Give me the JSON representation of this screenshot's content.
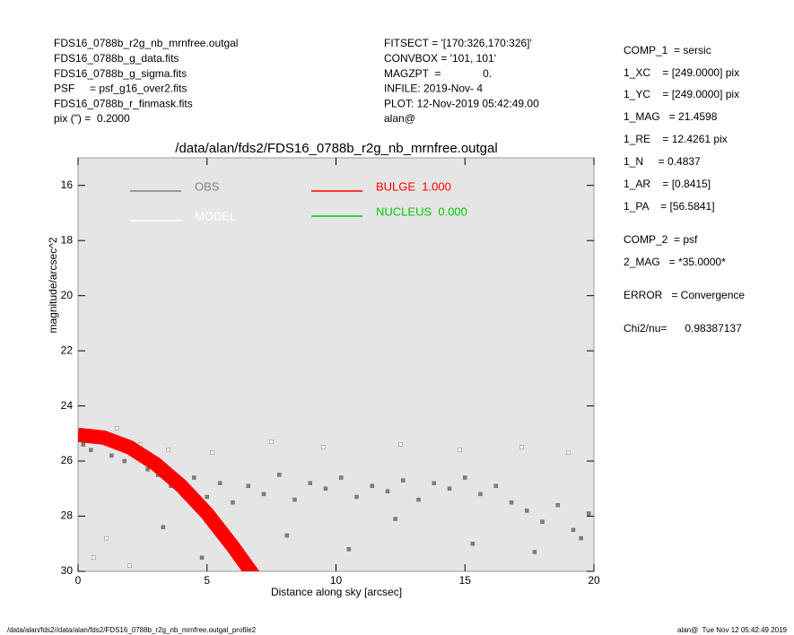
{
  "header": {
    "left": [
      "FDS16_0788b_r2g_nb_mrnfree.outgal",
      "FDS16_0788b_g_data.fits",
      "FDS16_0788b_g_sigma.fits",
      "PSF     = psf_g16_over2.fits",
      "FDS16_0788b_r_finmask.fits",
      "pix (\") =  0.2000"
    ],
    "middle": [
      "FITSECT = '[170:326,170:326]'",
      "CONVBOX = '101, 101'",
      "MAGZPT  =              0.",
      "INFILE: 2019-Nov- 4",
      "PLOT: 12-Nov-2019 05:42:49.00",
      "alan@"
    ]
  },
  "right_panel": [
    "COMP_1  = sersic",
    "1_XC    = [249.0000] pix",
    "1_YC    = [249.0000] pix",
    "1_MAG   = 21.4598",
    "1_RE    = 12.4261 pix",
    "1_N     = 0.4837",
    "1_AR    = [0.8415]",
    "1_PA    = [56.5841]",
    "COMP_2  = psf",
    "2_MAG   = *35.0000*",
    "ERROR   = Convergence",
    "Chi2/nu=      0.98387137"
  ],
  "footer": {
    "left": "/data/alan/fds2//data/alan/fds2/FDS16_0788b_r2g_nb_mrnfree.outgal_profile2",
    "right": "alan@  Tue Nov 12 05:42:49 2019"
  },
  "chart_data": {
    "type": "scatter",
    "title": "/data/alan/fds2/FDS16_0788b_r2g_nb_mrnfree.outgal",
    "x_label": "Distance along sky [arcsec]",
    "y_label": "magnitude/arcsec^2",
    "xlim": [
      0,
      20
    ],
    "xticks": [
      0,
      5,
      10,
      15,
      20
    ],
    "ylim": [
      15,
      30
    ],
    "yticks": [
      16,
      18,
      20,
      22,
      24,
      26,
      28,
      30
    ],
    "y_inverted": true,
    "series": [
      {
        "name": "OBS",
        "color": "#808080",
        "kind": "points",
        "x": [
          0.2,
          0.5,
          0.9,
          1.3,
          1.8,
          2.2,
          2.7,
          3.1,
          3.6,
          4.0,
          4.5,
          5.0,
          5.5,
          6.0,
          6.6,
          7.2,
          7.8,
          8.4,
          9.0,
          9.6,
          10.2,
          10.8,
          11.4,
          12.0,
          12.6,
          13.2,
          13.8,
          14.4,
          15.0,
          15.6,
          16.2,
          16.8,
          17.4,
          18.0,
          18.6,
          19.2,
          19.8,
          3.3,
          8.1,
          12.3,
          15.3,
          17.7,
          19.5,
          4.8,
          10.5
        ],
        "values": [
          25.4,
          25.6,
          25.3,
          25.8,
          26.0,
          25.7,
          26.3,
          26.5,
          26.9,
          27.1,
          26.6,
          27.3,
          26.8,
          27.5,
          26.9,
          27.2,
          26.5,
          27.4,
          26.8,
          27.0,
          26.6,
          27.3,
          26.9,
          27.1,
          26.7,
          27.4,
          26.8,
          27.0,
          26.6,
          27.2,
          26.9,
          27.5,
          27.8,
          28.2,
          27.6,
          28.5,
          27.9,
          28.4,
          28.7,
          28.1,
          29.0,
          29.3,
          28.8,
          29.5,
          29.2
        ]
      },
      {
        "name": "MODEL",
        "color": "#ffffff",
        "kind": "points",
        "x": [
          0.3,
          0.8,
          1.5,
          2.4,
          3.5,
          5.2,
          7.5,
          9.5,
          12.5,
          14.8,
          17.2,
          19.0,
          0.6,
          1.1,
          2.0
        ],
        "values": [
          24.9,
          25.0,
          24.8,
          25.4,
          25.6,
          25.7,
          25.3,
          25.5,
          25.4,
          25.6,
          25.5,
          25.7,
          29.5,
          28.8,
          29.8
        ]
      },
      {
        "name": "BULGE  1.000",
        "color": "#ff0000",
        "kind": "band",
        "x": [
          0,
          1,
          2,
          3,
          4,
          5,
          6,
          7
        ],
        "values": [
          25.05,
          25.15,
          25.5,
          26.1,
          26.9,
          27.9,
          29.1,
          30.4
        ]
      },
      {
        "name": "NUCLEUS  0.000",
        "color": "#00cc00",
        "kind": "band",
        "x": [],
        "values": []
      }
    ]
  }
}
